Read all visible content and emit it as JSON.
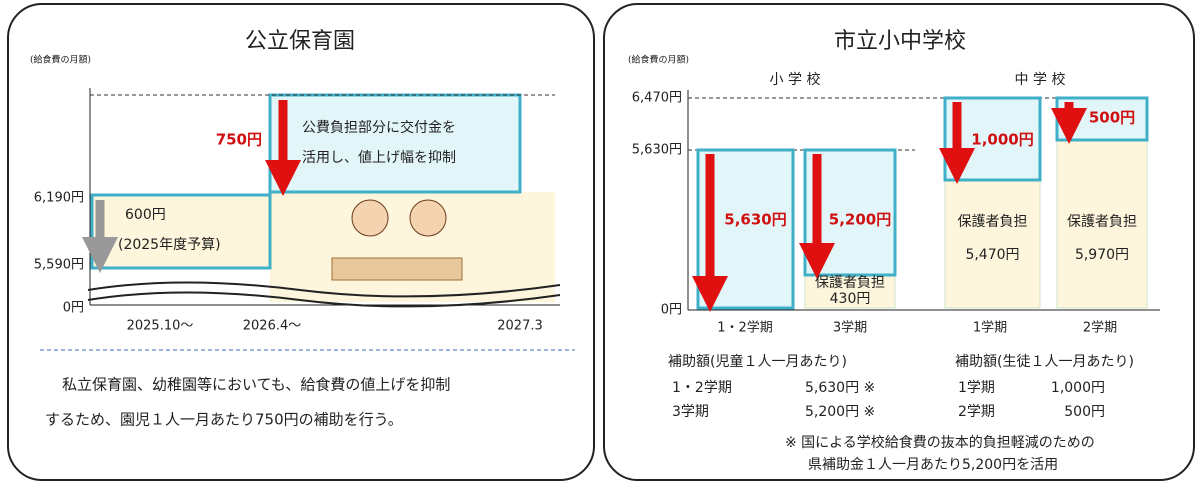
{
  "left_panel": {
    "title": "公立保育園",
    "axis_caption": "(給食費の月額)",
    "y_labels": [
      "6,190円",
      "5,590円",
      "0円"
    ],
    "x_labels": [
      "2025.10～",
      "2026.4～",
      "2027.3"
    ],
    "box1": [
      "600円",
      "(2025年度予算)"
    ],
    "box2_amount": "750円",
    "box2_text": [
      "公費負担部分に交付金を",
      "活用し、値上げ幅を抑制"
    ],
    "note": [
      "私立保育園、幼稚園等においても、給食費の値上げを抑制",
      "するため、園児１人一月あたり750円の補助を行う。"
    ]
  },
  "right_panel": {
    "title": "市立小中学校",
    "axis_caption": "(給食費の月額)",
    "group_labels": [
      "小 学 校",
      "中 学 校"
    ],
    "y_labels": [
      "6,470円",
      "5,630円",
      "0円"
    ],
    "bars": [
      {
        "amount": "5,630円",
        "label": "1・2学期"
      },
      {
        "amount": "5,200円",
        "sub": [
          "保護者負担",
          "430円"
        ],
        "label": "3学期"
      },
      {
        "amount": "1,000円",
        "sub": [
          "保護者負担",
          "5,470円"
        ],
        "label": "1学期"
      },
      {
        "amount": "500円",
        "sub": [
          "保護者負担",
          "5,970円"
        ],
        "label": "2学期"
      }
    ],
    "subsidy_elementary": {
      "heading": "補助額(児童１人一月あたり)",
      "rows": [
        [
          "1・2学期",
          "5,630円 ※"
        ],
        [
          "3学期",
          "5,200円 ※"
        ]
      ]
    },
    "subsidy_junior": {
      "heading": "補助額(生徒１人一月あたり)",
      "rows": [
        [
          "1学期",
          "1,000円"
        ],
        [
          "2学期",
          "500円"
        ]
      ]
    },
    "footnote": [
      "※ 国による学校給食費の抜本的負担軽減のための",
      "県補助金１人一月あたり5,200円を活用"
    ]
  }
}
